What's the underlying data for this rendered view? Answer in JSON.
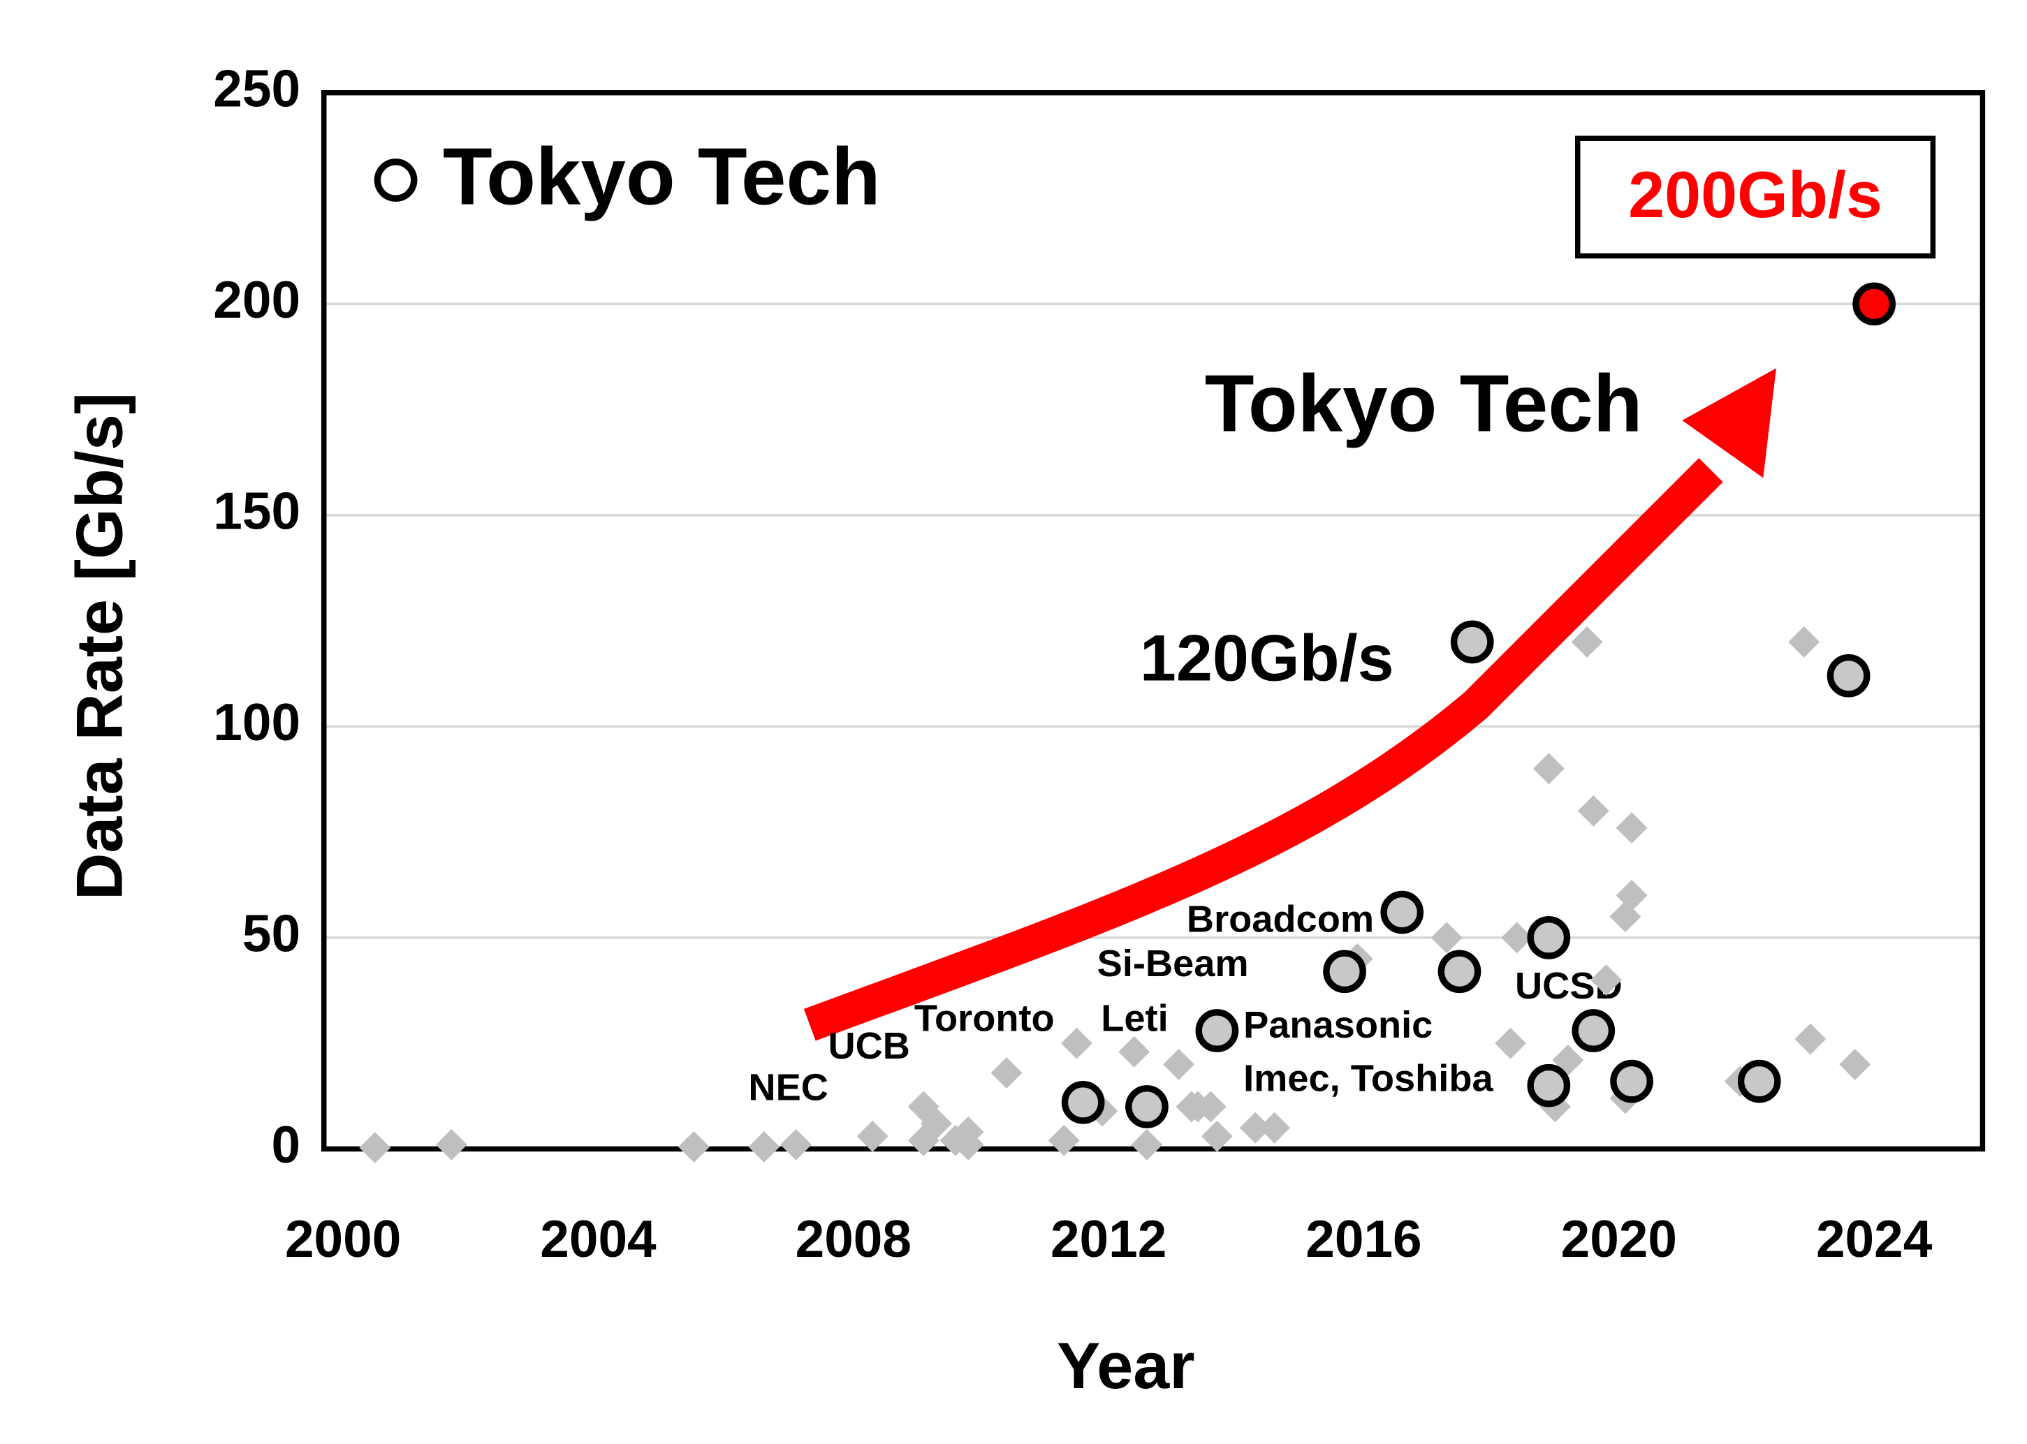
{
  "chart_data": {
    "type": "scatter",
    "xlabel": "Year",
    "ylabel": "Data Rate [Gb/s]",
    "xlim": [
      1999.7,
      2025.7
    ],
    "xticks": [
      2000,
      2004,
      2008,
      2012,
      2016,
      2020,
      2024
    ],
    "ylim": [
      0,
      250
    ],
    "yticks": [
      0,
      50,
      100,
      150,
      200,
      250
    ],
    "grid": true,
    "legend": "upper left",
    "series": [
      {
        "name": "Tokyo Tech",
        "marker": "circle",
        "color": "#c8c8c8",
        "colors": [
          "#c8c8c8",
          "#c8c8c8",
          "#c8c8c8",
          "#c8c8c8",
          "#c8c8c8",
          "#c8c8c8",
          "#c8c8c8",
          "#c8c8c8",
          "#c8c8c8",
          "#c8c8c8",
          "#c8c8c8",
          "#c8c8c8",
          "#c8c8c8",
          "#ff0000"
        ],
        "x": [
          2011.6,
          2012.6,
          2013.7,
          2015.7,
          2016.6,
          2017.5,
          2017.7,
          2018.9,
          2018.9,
          2019.6,
          2020.2,
          2022.2,
          2023.6,
          2024.0
        ],
        "values": [
          11,
          10,
          28,
          42,
          56,
          42,
          120,
          50,
          15,
          28,
          16,
          16,
          112,
          200
        ]
      },
      {
        "marker": "diamond",
        "color": "#bfbfbf",
        "x": [
          2000.5,
          2001.7,
          2005.5,
          2006.6,
          2007.1,
          2008.3,
          2009.1,
          2009.1,
          2009.3,
          2009.6,
          2009.8,
          2009.8,
          2010.4,
          2011.5,
          2011.3,
          2011.9,
          2012.4,
          2012.6,
          2013.1,
          2013.3,
          2013.4,
          2013.6,
          2013.7,
          2014.3,
          2014.6,
          2015.9,
          2017.3,
          2018.3,
          2018.4,
          2018.9,
          2019.0,
          2019.2,
          2019.5,
          2019.6,
          2019.8,
          2020.1,
          2020.2,
          2020.2,
          2020.1,
          2021.9,
          2022.9,
          2023.0,
          2023.7
        ],
        "values": [
          0.3,
          1,
          0.5,
          0.5,
          1,
          3,
          10,
          2,
          6,
          2,
          4,
          1,
          18,
          25,
          2,
          9,
          23,
          1,
          20,
          10,
          10,
          10,
          3,
          5,
          5,
          45,
          50,
          25,
          50,
          90,
          10,
          21,
          120,
          80,
          40,
          55,
          76,
          60,
          12,
          16,
          120,
          26,
          20
        ]
      }
    ],
    "annotations": [
      "200Gb/s",
      "Tokyo Tech",
      "120Gb/s",
      "Broadcom",
      "Si-Beam",
      "Toronto",
      "Leti",
      "Panasonic",
      "Imec, Toshiba",
      "UCSD",
      "UCB",
      "NEC"
    ]
  }
}
